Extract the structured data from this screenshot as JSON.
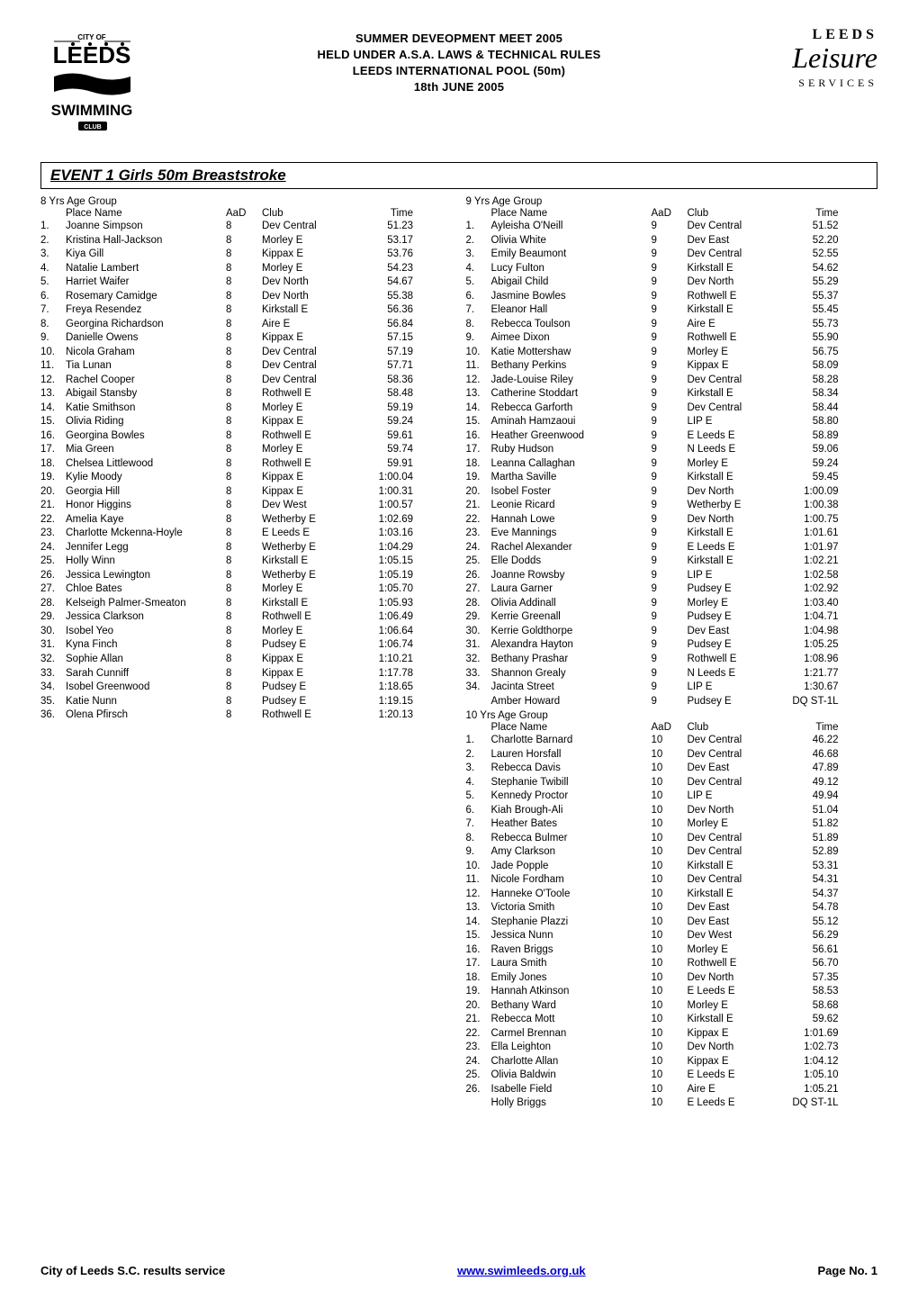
{
  "header": {
    "lines": [
      "SUMMER DEVEOPMENT MEET 2005",
      "HELD UNDER A.S.A. LAWS & TECHNICAL RULES",
      "LEEDS INTERNATIONAL POOL (50m)",
      "18th JUNE 2005"
    ]
  },
  "logo_left": {
    "top_text": "CITY OF",
    "main_text": "LEEDS",
    "bottom_text": "SWIMMING",
    "sub_text": "CLUB"
  },
  "logo_right": {
    "top": "LEEDS",
    "mid": "Leisure",
    "bottom": "SERVICES"
  },
  "event_title": "EVENT 1 Girls 50m Breaststroke",
  "col_headers": {
    "place": "Place Name",
    "aad": "AaD",
    "club": "Club",
    "time": "Time"
  },
  "groups": [
    {
      "label": "8  Yrs Age Group",
      "col": "left",
      "rows": [
        {
          "p": "1.",
          "n": "Joanne Simpson",
          "a": "8",
          "c": "Dev Central",
          "t": "51.23"
        },
        {
          "p": "2.",
          "n": "Kristina Hall-Jackson",
          "a": "8",
          "c": "Morley E",
          "t": "53.17"
        },
        {
          "p": "3.",
          "n": "Kiya Gill",
          "a": "8",
          "c": "Kippax E",
          "t": "53.76"
        },
        {
          "p": "4.",
          "n": "Natalie Lambert",
          "a": "8",
          "c": "Morley E",
          "t": "54.23"
        },
        {
          "p": "5.",
          "n": "Harriet Waifer",
          "a": "8",
          "c": "Dev North",
          "t": "54.67"
        },
        {
          "p": "6.",
          "n": "Rosemary Camidge",
          "a": "8",
          "c": "Dev North",
          "t": "55.38"
        },
        {
          "p": "7.",
          "n": "Freya Resendez",
          "a": "8",
          "c": "Kirkstall E",
          "t": "56.36"
        },
        {
          "p": "8.",
          "n": "Georgina Richardson",
          "a": "8",
          "c": "Aire E",
          "t": "56.84"
        },
        {
          "p": "9.",
          "n": "Danielle Owens",
          "a": "8",
          "c": "Kippax E",
          "t": "57.15"
        },
        {
          "p": "10.",
          "n": "Nicola Graham",
          "a": "8",
          "c": "Dev Central",
          "t": "57.19"
        },
        {
          "p": "11.",
          "n": "Tia Lunan",
          "a": "8",
          "c": "Dev Central",
          "t": "57.71"
        },
        {
          "p": "12.",
          "n": "Rachel Cooper",
          "a": "8",
          "c": "Dev Central",
          "t": "58.36"
        },
        {
          "p": "13.",
          "n": "Abigail Stansby",
          "a": "8",
          "c": "Rothwell E",
          "t": "58.48"
        },
        {
          "p": "14.",
          "n": "Katie Smithson",
          "a": "8",
          "c": "Morley E",
          "t": "59.19"
        },
        {
          "p": "15.",
          "n": "Olivia Riding",
          "a": "8",
          "c": "Kippax E",
          "t": "59.24"
        },
        {
          "p": "16.",
          "n": "Georgina Bowles",
          "a": "8",
          "c": "Rothwell E",
          "t": "59.61"
        },
        {
          "p": "17.",
          "n": "Mia Green",
          "a": "8",
          "c": "Morley E",
          "t": "59.74"
        },
        {
          "p": "18.",
          "n": "Chelsea Littlewood",
          "a": "8",
          "c": "Rothwell E",
          "t": "59.91"
        },
        {
          "p": "19.",
          "n": "Kylie Moody",
          "a": "8",
          "c": "Kippax E",
          "t": "1:00.04"
        },
        {
          "p": "20.",
          "n": "Georgia Hill",
          "a": "8",
          "c": "Kippax E",
          "t": "1:00.31"
        },
        {
          "p": "21.",
          "n": "Honor Higgins",
          "a": "8",
          "c": "Dev West",
          "t": "1:00.57"
        },
        {
          "p": "22.",
          "n": "Amelia Kaye",
          "a": "8",
          "c": "Wetherby E",
          "t": "1:02.69"
        },
        {
          "p": "23.",
          "n": "Charlotte Mckenna-Hoyle",
          "a": "8",
          "c": "E Leeds E",
          "t": "1:03.16"
        },
        {
          "p": "24.",
          "n": "Jennifer Legg",
          "a": "8",
          "c": "Wetherby E",
          "t": "1:04.29"
        },
        {
          "p": "25.",
          "n": "Holly Winn",
          "a": "8",
          "c": "Kirkstall E",
          "t": "1:05.15"
        },
        {
          "p": "26.",
          "n": "Jessica Lewington",
          "a": "8",
          "c": "Wetherby E",
          "t": "1:05.19"
        },
        {
          "p": "27.",
          "n": "Chloe Bates",
          "a": "8",
          "c": "Morley E",
          "t": "1:05.70"
        },
        {
          "p": "28.",
          "n": "Kelseigh Palmer-Smeaton",
          "a": "8",
          "c": "Kirkstall E",
          "t": "1:05.93"
        },
        {
          "p": "29.",
          "n": "Jessica Clarkson",
          "a": "8",
          "c": "Rothwell E",
          "t": "1:06.49"
        },
        {
          "p": "30.",
          "n": "Isobel Yeo",
          "a": "8",
          "c": "Morley E",
          "t": "1:06.64"
        },
        {
          "p": "31.",
          "n": "Kyna Finch",
          "a": "8",
          "c": "Pudsey E",
          "t": "1:06.74"
        },
        {
          "p": "32.",
          "n": "Sophie Allan",
          "a": "8",
          "c": "Kippax E",
          "t": "1:10.21"
        },
        {
          "p": "33.",
          "n": "Sarah Cunniff",
          "a": "8",
          "c": "Kippax E",
          "t": "1:17.78"
        },
        {
          "p": "34.",
          "n": "Isobel Greenwood",
          "a": "8",
          "c": "Pudsey E",
          "t": "1:18.65"
        },
        {
          "p": "35.",
          "n": "Katie Nunn",
          "a": "8",
          "c": "Pudsey E",
          "t": "1:19.15"
        },
        {
          "p": "36.",
          "n": "Olena Pfirsch",
          "a": "8",
          "c": "Rothwell E",
          "t": "1:20.13"
        }
      ]
    },
    {
      "label": "9  Yrs Age Group",
      "col": "right",
      "rows": [
        {
          "p": "1.",
          "n": "Ayleisha O'Neill",
          "a": "9",
          "c": "Dev Central",
          "t": "51.52"
        },
        {
          "p": "2.",
          "n": "Olivia White",
          "a": "9",
          "c": "Dev East",
          "t": "52.20"
        },
        {
          "p": "3.",
          "n": "Emily Beaumont",
          "a": "9",
          "c": "Dev Central",
          "t": "52.55"
        },
        {
          "p": "4.",
          "n": "Lucy Fulton",
          "a": "9",
          "c": "Kirkstall E",
          "t": "54.62"
        },
        {
          "p": "5.",
          "n": "Abigail Child",
          "a": "9",
          "c": "Dev North",
          "t": "55.29"
        },
        {
          "p": "6.",
          "n": "Jasmine Bowles",
          "a": "9",
          "c": "Rothwell E",
          "t": "55.37"
        },
        {
          "p": "7.",
          "n": "Eleanor Hall",
          "a": "9",
          "c": "Kirkstall E",
          "t": "55.45"
        },
        {
          "p": "8.",
          "n": "Rebecca Toulson",
          "a": "9",
          "c": "Aire E",
          "t": "55.73"
        },
        {
          "p": "9.",
          "n": "Aimee Dixon",
          "a": "9",
          "c": "Rothwell E",
          "t": "55.90"
        },
        {
          "p": "10.",
          "n": "Katie Mottershaw",
          "a": "9",
          "c": "Morley E",
          "t": "56.75"
        },
        {
          "p": "11.",
          "n": "Bethany Perkins",
          "a": "9",
          "c": "Kippax E",
          "t": "58.09"
        },
        {
          "p": "12.",
          "n": "Jade-Louise Riley",
          "a": "9",
          "c": "Dev Central",
          "t": "58.28"
        },
        {
          "p": "13.",
          "n": "Catherine Stoddart",
          "a": "9",
          "c": "Kirkstall E",
          "t": "58.34"
        },
        {
          "p": "14.",
          "n": "Rebecca Garforth",
          "a": "9",
          "c": "Dev Central",
          "t": "58.44"
        },
        {
          "p": "15.",
          "n": "Aminah Hamzaoui",
          "a": "9",
          "c": "LIP E",
          "t": "58.80"
        },
        {
          "p": "16.",
          "n": "Heather Greenwood",
          "a": "9",
          "c": "E Leeds E",
          "t": "58.89"
        },
        {
          "p": "17.",
          "n": "Ruby Hudson",
          "a": "9",
          "c": "N Leeds E",
          "t": "59.06"
        },
        {
          "p": "18.",
          "n": "Leanna Callaghan",
          "a": "9",
          "c": "Morley E",
          "t": "59.24"
        },
        {
          "p": "19.",
          "n": "Martha Saville",
          "a": "9",
          "c": "Kirkstall E",
          "t": "59.45"
        },
        {
          "p": "20.",
          "n": "Isobel Foster",
          "a": "9",
          "c": "Dev North",
          "t": "1:00.09"
        },
        {
          "p": "21.",
          "n": "Leonie Ricard",
          "a": "9",
          "c": "Wetherby E",
          "t": "1:00.38"
        },
        {
          "p": "22.",
          "n": "Hannah Lowe",
          "a": "9",
          "c": "Dev North",
          "t": "1:00.75"
        },
        {
          "p": "23.",
          "n": "Eve Mannings",
          "a": "9",
          "c": "Kirkstall E",
          "t": "1:01.61"
        },
        {
          "p": "24.",
          "n": "Rachel Alexander",
          "a": "9",
          "c": "E Leeds E",
          "t": "1:01.97"
        },
        {
          "p": "25.",
          "n": "Elle Dodds",
          "a": "9",
          "c": "Kirkstall E",
          "t": "1:02.21"
        },
        {
          "p": "26.",
          "n": "Joanne Rowsby",
          "a": "9",
          "c": "LIP E",
          "t": "1:02.58"
        },
        {
          "p": "27.",
          "n": "Laura Garner",
          "a": "9",
          "c": "Pudsey E",
          "t": "1:02.92"
        },
        {
          "p": "28.",
          "n": "Olivia Addinall",
          "a": "9",
          "c": "Morley E",
          "t": "1:03.40"
        },
        {
          "p": "29.",
          "n": "Kerrie Greenall",
          "a": "9",
          "c": "Pudsey E",
          "t": "1:04.71"
        },
        {
          "p": "30.",
          "n": "Kerrie Goldthorpe",
          "a": "9",
          "c": "Dev East",
          "t": "1:04.98"
        },
        {
          "p": "31.",
          "n": "Alexandra Hayton",
          "a": "9",
          "c": "Pudsey E",
          "t": "1:05.25"
        },
        {
          "p": "32.",
          "n": "Bethany Prashar",
          "a": "9",
          "c": "Rothwell E",
          "t": "1:08.96"
        },
        {
          "p": "33.",
          "n": "Shannon Grealy",
          "a": "9",
          "c": "N Leeds E",
          "t": "1:21.77"
        },
        {
          "p": "34.",
          "n": "Jacinta Street",
          "a": "9",
          "c": "LIP E",
          "t": "1:30.67"
        },
        {
          "p": "",
          "n": "Amber Howard",
          "a": "9",
          "c": "Pudsey E",
          "t": "DQ ST-1L"
        }
      ]
    },
    {
      "label": "10 Yrs Age Group",
      "col": "right",
      "rows": [
        {
          "p": "1.",
          "n": "Charlotte Barnard",
          "a": "10",
          "c": "Dev Central",
          "t": "46.22"
        },
        {
          "p": "2.",
          "n": "Lauren Horsfall",
          "a": "10",
          "c": "Dev Central",
          "t": "46.68"
        },
        {
          "p": "3.",
          "n": "Rebecca Davis",
          "a": "10",
          "c": "Dev East",
          "t": "47.89"
        },
        {
          "p": "4.",
          "n": "Stephanie Twibill",
          "a": "10",
          "c": "Dev Central",
          "t": "49.12"
        },
        {
          "p": "5.",
          "n": "Kennedy Proctor",
          "a": "10",
          "c": "LIP E",
          "t": "49.94"
        },
        {
          "p": "6.",
          "n": "Kiah Brough-Ali",
          "a": "10",
          "c": "Dev North",
          "t": "51.04"
        },
        {
          "p": "7.",
          "n": "Heather Bates",
          "a": "10",
          "c": "Morley E",
          "t": "51.82"
        },
        {
          "p": "8.",
          "n": "Rebecca Bulmer",
          "a": "10",
          "c": "Dev Central",
          "t": "51.89"
        },
        {
          "p": "9.",
          "n": "Amy Clarkson",
          "a": "10",
          "c": "Dev Central",
          "t": "52.89"
        },
        {
          "p": "10.",
          "n": "Jade Popple",
          "a": "10",
          "c": "Kirkstall E",
          "t": "53.31"
        },
        {
          "p": "11.",
          "n": "Nicole Fordham",
          "a": "10",
          "c": "Dev Central",
          "t": "54.31"
        },
        {
          "p": "12.",
          "n": "Hanneke O'Toole",
          "a": "10",
          "c": "Kirkstall E",
          "t": "54.37"
        },
        {
          "p": "13.",
          "n": "Victoria Smith",
          "a": "10",
          "c": "Dev East",
          "t": "54.78"
        },
        {
          "p": "14.",
          "n": "Stephanie Plazzi",
          "a": "10",
          "c": "Dev East",
          "t": "55.12"
        },
        {
          "p": "15.",
          "n": "Jessica Nunn",
          "a": "10",
          "c": "Dev West",
          "t": "56.29"
        },
        {
          "p": "16.",
          "n": "Raven Briggs",
          "a": "10",
          "c": "Morley E",
          "t": "56.61"
        },
        {
          "p": "17.",
          "n": "Laura Smith",
          "a": "10",
          "c": "Rothwell E",
          "t": "56.70"
        },
        {
          "p": "18.",
          "n": "Emily Jones",
          "a": "10",
          "c": "Dev North",
          "t": "57.35"
        },
        {
          "p": "19.",
          "n": "Hannah Atkinson",
          "a": "10",
          "c": "E Leeds E",
          "t": "58.53"
        },
        {
          "p": "20.",
          "n": "Bethany Ward",
          "a": "10",
          "c": "Morley E",
          "t": "58.68"
        },
        {
          "p": "21.",
          "n": "Rebecca Mott",
          "a": "10",
          "c": "Kirkstall E",
          "t": "59.62"
        },
        {
          "p": "22.",
          "n": "Carmel Brennan",
          "a": "10",
          "c": "Kippax E",
          "t": "1:01.69"
        },
        {
          "p": "23.",
          "n": "Ella Leighton",
          "a": "10",
          "c": "Dev North",
          "t": "1:02.73"
        },
        {
          "p": "24.",
          "n": "Charlotte Allan",
          "a": "10",
          "c": "Kippax E",
          "t": "1:04.12"
        },
        {
          "p": "25.",
          "p2": "",
          "n": "Olivia Baldwin",
          "a": "10",
          "c": "E Leeds E",
          "t": "1:05.10"
        },
        {
          "p": "26.",
          "n": "Isabelle Field",
          "a": "10",
          "c": "Aire E",
          "t": "1:05.21"
        },
        {
          "p": "",
          "n": "Holly Briggs",
          "a": "10",
          "c": "E Leeds E",
          "t": "DQ ST-1L"
        }
      ]
    }
  ],
  "footer": {
    "left": "City of Leeds S.C. results service",
    "mid": "www.swimleeds.org.uk",
    "right": "Page No. 1"
  },
  "colors": {
    "text": "#000000",
    "link": "#0000cc",
    "background": "#ffffff",
    "border": "#000000"
  },
  "typography": {
    "body_fontsize_pt": 8.5,
    "header_fontsize_pt": 10,
    "event_title_fontsize_pt": 13,
    "footer_fontsize_pt": 10
  }
}
